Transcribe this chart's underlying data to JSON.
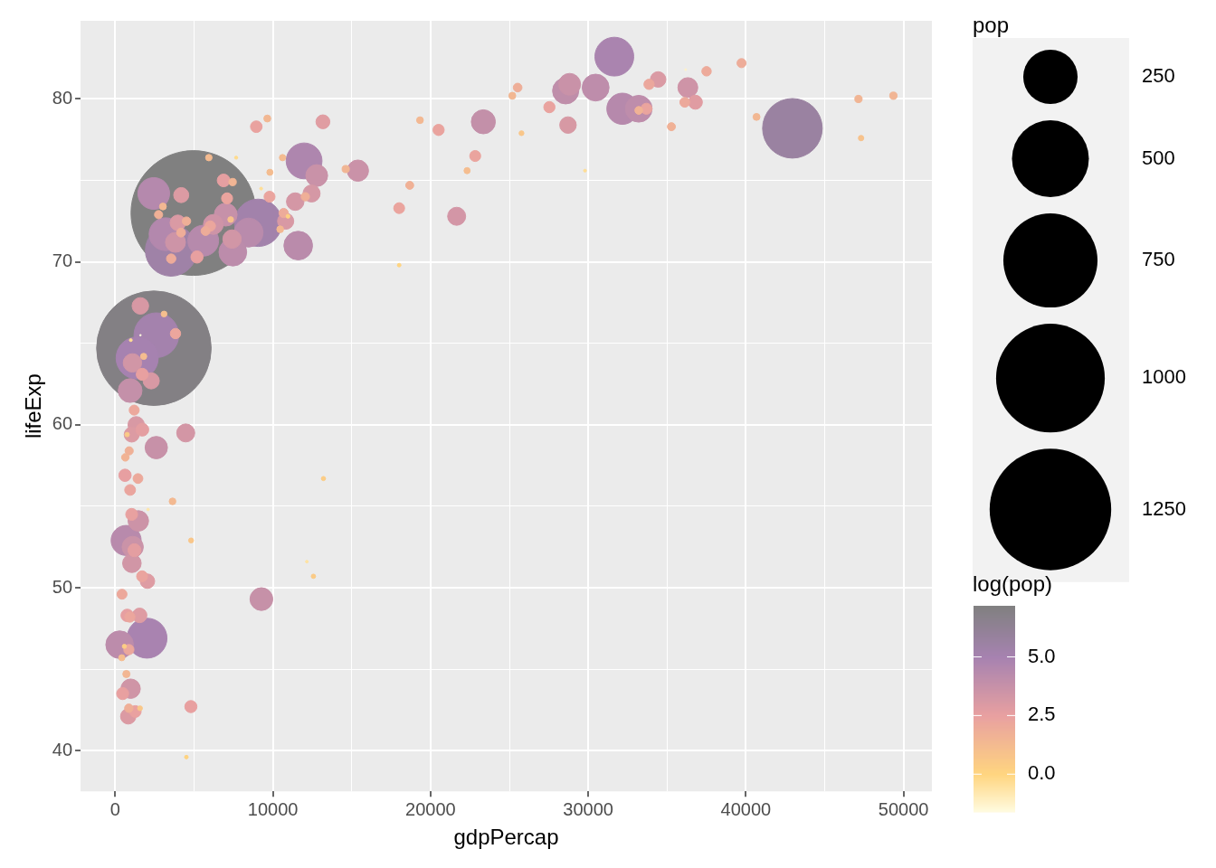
{
  "chart_data": {
    "type": "bubble",
    "xlabel": "gdpPercap",
    "ylabel": "lifeExp",
    "legend_title": "pop",
    "clabel": "log(pop)",
    "grid": true,
    "marker": "circle",
    "xlim": [
      -2200,
      51800
    ],
    "xticks": [
      0,
      {
        "value": 5000,
        "label": null
      },
      10000,
      {
        "value": 15000,
        "label": null
      },
      20000,
      {
        "value": 25000,
        "label": null
      },
      30000,
      {
        "value": 35000,
        "label": null
      },
      40000,
      {
        "value": 45000,
        "label": null
      },
      50000
    ],
    "ylim": [
      37.5,
      84.8
    ],
    "yticks": [
      40,
      {
        "value": 45,
        "label": null
      },
      50,
      {
        "value": 55,
        "label": null
      },
      60,
      {
        "value": 65,
        "label": null
      },
      70,
      {
        "value": 75,
        "label": null
      },
      80
    ],
    "size_legend": [
      250,
      500,
      750,
      1000,
      1250
    ],
    "clim": [
      -1.61,
      7.18
    ],
    "cticks": [
      {
        "value": 0,
        "label": "0.0"
      },
      2.5,
      {
        "value": 5,
        "label": "5.0"
      }
    ],
    "x": [
      975,
      5937,
      6223,
      4797,
      12779,
      34435,
      36126,
      29796,
      1391,
      33693,
      1441,
      3822,
      7446,
      12570,
      9066,
      10681,
      1217,
      430,
      1714,
      2042,
      36319,
      706,
      1704,
      13172,
      4959,
      7007,
      986,
      278,
      3633,
      9645,
      1545,
      14619,
      8948,
      22833,
      35278,
      2082,
      6025,
      6873,
      5581,
      5728,
      12154,
      641,
      691,
      33207,
      30470,
      13206,
      753,
      32170,
      1328,
      27538,
      5186,
      943,
      579,
      1202,
      3548,
      39725,
      18009,
      36181,
      2452,
      3541,
      11606,
      4471,
      40676,
      25523,
      28570,
      7321,
      31656,
      4519,
      1463,
      1593,
      23348,
      47307,
      10461,
      1569,
      415,
      12057,
      1044,
      759,
      12452,
      1042,
      1803,
      10957,
      11978,
      3096,
      9254,
      3820,
      824,
      944,
      4811,
      1091,
      36798,
      25185,
      2749,
      620,
      2014,
      49357,
      22316,
      2606,
      9809,
      4173,
      7409,
      3190,
      15390,
      20510,
      19329,
      7670,
      10808,
      863,
      1598,
      21655,
      1712,
      9787,
      863,
      47143,
      18678,
      25768,
      926,
      9270,
      28821,
      3970,
      2602,
      4513,
      33860,
      37506,
      4185,
      28718,
      1107,
      7458,
      883,
      18009,
      7093,
      8458,
      1056,
      33203,
      42952,
      10611,
      11416,
      2442,
      3025,
      2281,
      1271,
      470
    ],
    "values": [
      43.8,
      76.4,
      72.3,
      42.7,
      75.3,
      81.2,
      79.8,
      75.6,
      64.1,
      79.4,
      56.7,
      65.6,
      74.9,
      50.7,
      72.4,
      73.0,
      52.3,
      49.6,
      59.7,
      50.4,
      80.7,
      44.7,
      50.7,
      78.6,
      73.0,
      72.9,
      65.2,
      46.5,
      55.3,
      78.8,
      48.3,
      75.7,
      78.3,
      76.5,
      78.3,
      54.8,
      72.2,
      75.0,
      71.3,
      71.9,
      51.6,
      58.0,
      52.9,
      79.3,
      80.7,
      56.7,
      59.4,
      79.4,
      60.0,
      79.5,
      70.3,
      56.0,
      46.4,
      60.9,
      70.2,
      82.2,
      73.3,
      81.8,
      64.7,
      70.7,
      71.0,
      59.5,
      78.9,
      80.7,
      80.5,
      72.6,
      82.6,
      72.5,
      54.1,
      67.3,
      78.6,
      77.6,
      72.0,
      42.6,
      45.7,
      74.0,
      59.4,
      48.3,
      74.2,
      54.5,
      64.2,
      72.8,
      76.2,
      66.8,
      74.5,
      71.2,
      42.1,
      62.1,
      52.9,
      63.8,
      79.8,
      80.2,
      72.9,
      56.9,
      46.9,
      80.2,
      75.6,
      65.5,
      75.5,
      71.8,
      71.4,
      71.7,
      75.6,
      78.1,
      78.7,
      76.4,
      72.5,
      46.2,
      65.5,
      72.8,
      63.1,
      74.0,
      42.6,
      80.0,
      74.7,
      77.9,
      48.2,
      49.3,
      80.9,
      72.4,
      58.6,
      39.6,
      80.9,
      81.7,
      74.1,
      78.4,
      52.5,
      70.6,
      58.4,
      69.8,
      73.9,
      71.8,
      51.5,
      79.4,
      78.2,
      76.4,
      73.7,
      74.2,
      73.4,
      62.7,
      42.4,
      43.5
    ],
    "sizes": [
      31.9,
      3.6,
      33.3,
      12.4,
      40.3,
      20.4,
      8.2,
      0.7,
      150.4,
      10.4,
      8.1,
      9.1,
      4.6,
      1.6,
      190.0,
      7.3,
      14.3,
      8.4,
      14.1,
      17.7,
      33.4,
      4.4,
      10.2,
      16.3,
      1318.7,
      44.2,
      0.7,
      64.6,
      3.8,
      4.1,
      18.0,
      4.5,
      11.4,
      10.2,
      5.5,
      0.5,
      9.3,
      13.8,
      80.3,
      6.9,
      0.6,
      4.9,
      76.5,
      5.2,
      61.1,
      1.5,
      1.7,
      82.4,
      22.9,
      10.7,
      12.6,
      9.9,
      1.5,
      8.5,
      7.5,
      7.0,
      10.0,
      0.3,
      1110.4,
      223.5,
      69.5,
      27.5,
      4.1,
      6.4,
      58.1,
      2.8,
      127.5,
      6.1,
      35.6,
      23.3,
      49.0,
      2.5,
      3.9,
      2.0,
      3.2,
      6.0,
      19.2,
      13.3,
      24.8,
      12.0,
      3.3,
      1.3,
      108.7,
      2.9,
      0.7,
      33.8,
      20.0,
      47.8,
      2.1,
      28.9,
      16.6,
      4.1,
      5.7,
      12.9,
      135.0,
      4.6,
      3.2,
      169.3,
      3.2,
      6.7,
      28.7,
      91.1,
      38.5,
      10.6,
      3.9,
      0.8,
      22.3,
      8.9,
      0.2,
      27.6,
      12.3,
      10.2,
      6.1,
      4.6,
      5.4,
      2.0,
      9.1,
      44.0,
      40.4,
      20.4,
      42.3,
      1.1,
      9.0,
      7.6,
      19.3,
      23.2,
      38.1,
      65.1,
      5.7,
      1.1,
      10.3,
      71.2,
      29.2,
      60.8,
      301.1,
      3.4,
      26.1,
      85.3,
      4.0,
      22.2,
      11.7,
      12.3
    ],
    "cvalues": [
      3.46,
      1.28,
      3.51,
      2.52,
      3.7,
      3.02,
      2.1,
      -0.34,
      5.01,
      2.34,
      2.09,
      2.21,
      1.52,
      0.49,
      5.25,
      1.99,
      2.66,
      2.13,
      2.65,
      2.87,
      3.51,
      1.47,
      2.32,
      2.79,
      7.18,
      3.79,
      -0.34,
      4.17,
      1.34,
      1.42,
      2.89,
      1.5,
      2.43,
      2.32,
      1.7,
      -0.69,
      2.23,
      2.62,
      4.39,
      1.93,
      -0.6,
      1.59,
      4.34,
      1.66,
      4.11,
      0.37,
      0.52,
      4.41,
      3.13,
      2.37,
      2.53,
      2.29,
      0.39,
      2.14,
      2.01,
      1.95,
      2.3,
      -1.2,
      7.01,
      5.41,
      4.24,
      3.31,
      1.41,
      1.86,
      4.06,
      1.02,
      4.85,
      1.8,
      3.57,
      3.15,
      3.89,
      0.92,
      1.36,
      0.69,
      1.16,
      1.79,
      2.95,
      2.59,
      3.21,
      2.48,
      1.19,
      0.26,
      4.69,
      1.06,
      -0.36,
      3.52,
      3.0,
      3.87,
      0.72,
      3.36,
      2.81,
      1.42,
      1.74,
      2.56,
      4.91,
      1.53,
      1.16,
      5.13,
      1.18,
      1.9,
      3.36,
      4.51,
      3.65,
      2.36,
      1.37,
      -0.23,
      3.1,
      2.19,
      -1.61,
      3.32,
      2.51,
      2.32,
      1.81,
      1.52,
      1.7,
      0.7,
      2.21,
      3.78,
      3.7,
      3.02,
      3.74,
      0.12,
      2.2,
      2.02,
      2.96,
      3.14,
      3.64,
      4.18,
      1.74,
      0.06,
      2.33,
      4.27,
      3.37,
      4.11,
      5.71,
      1.22,
      3.26,
      4.45,
      1.39,
      3.1,
      2.46,
      2.51
    ]
  }
}
